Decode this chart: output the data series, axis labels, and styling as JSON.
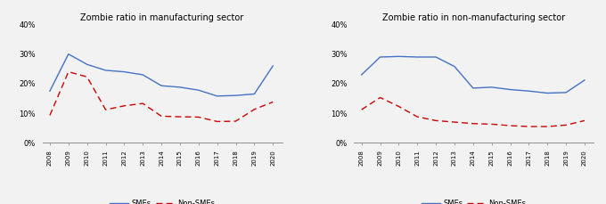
{
  "years": [
    2008,
    2009,
    2010,
    2011,
    2012,
    2013,
    2014,
    2015,
    2016,
    2017,
    2018,
    2019,
    2020
  ],
  "manuf_smes": [
    0.175,
    0.3,
    0.265,
    0.245,
    0.24,
    0.23,
    0.193,
    0.188,
    0.178,
    0.158,
    0.16,
    0.165,
    0.26
  ],
  "manuf_nonsmes": [
    0.093,
    0.24,
    0.223,
    0.112,
    0.125,
    0.133,
    0.09,
    0.088,
    0.087,
    0.072,
    0.073,
    0.113,
    0.138
  ],
  "nonmanuf_smes": [
    0.23,
    0.29,
    0.292,
    0.29,
    0.29,
    0.258,
    0.185,
    0.188,
    0.18,
    0.175,
    0.168,
    0.17,
    0.212
  ],
  "nonmanuf_nonsmes": [
    0.112,
    0.153,
    0.123,
    0.088,
    0.075,
    0.07,
    0.065,
    0.063,
    0.058,
    0.055,
    0.055,
    0.06,
    0.075
  ],
  "title_manuf": "Zombie ratio in manufacturing sector",
  "title_nonmanuf": "Zombie ratio in non-manufacturing sector",
  "smes_color": "#4472C4",
  "nonsmes_color": "#CC0000",
  "bg_color": "#F2F2F2",
  "ylim": [
    0.0,
    0.4
  ],
  "yticks": [
    0.0,
    0.1,
    0.2,
    0.3,
    0.4
  ],
  "ytick_labels": [
    "0%",
    "10%",
    "20%",
    "30%",
    "40%"
  ],
  "legend_smes": "SMEs",
  "legend_nonsmes": "Non-SMEs"
}
